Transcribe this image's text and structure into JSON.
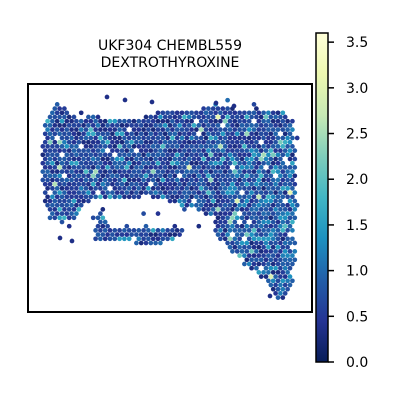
{
  "chart_data": {
    "type": "heatmap",
    "subtype": "spatial hexbin expression map",
    "title_lines": [
      "UKF304 CHEMBL559",
      "DEXTROTHYROXINE"
    ],
    "colorbar": {
      "colormap": "YlGnBu",
      "range": [
        0.0,
        3.6
      ],
      "ticks": [
        0.0,
        0.5,
        1.0,
        1.5,
        2.0,
        2.5,
        3.0,
        3.5
      ],
      "tick_labels": [
        "0.0",
        "0.5",
        "1.0",
        "1.5",
        "2.0",
        "2.5",
        "3.0",
        "3.5"
      ],
      "stops": [
        "#081d58",
        "#253494",
        "#225ea8",
        "#1d91c0",
        "#41b6c4",
        "#7fcdbb",
        "#c7e9b4",
        "#edf8b1",
        "#ffffd9"
      ]
    },
    "axes": {
      "xticks": [],
      "yticks": [],
      "grid": false,
      "frame": true
    },
    "value_distribution": {
      "min": 0.0,
      "max": 3.6,
      "typical_range": [
        0.2,
        1.2
      ],
      "mode": 0.5,
      "hot_spots": "sparse spots up to 2.0, rare up to 3.3"
    }
  }
}
